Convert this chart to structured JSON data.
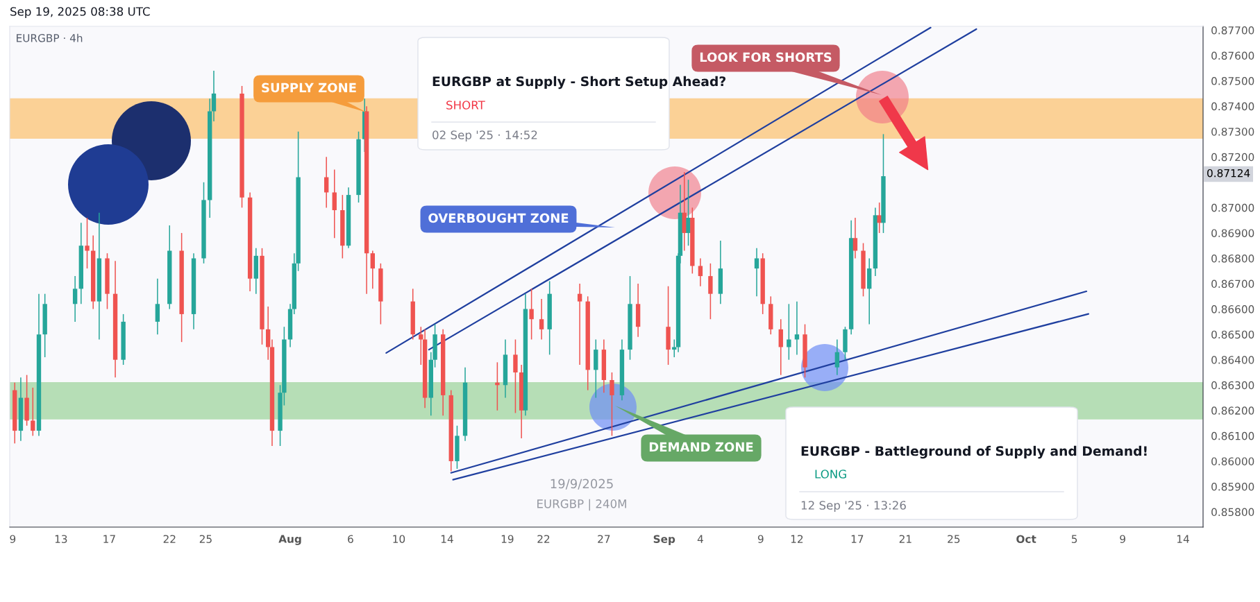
{
  "chart_data": {
    "type": "candlestick",
    "title": "EURGBP · 4h",
    "x": [
      "2025-07-09T04:00",
      "2025-07-09T16:00",
      "2025-07-10T04:00",
      "2025-07-10T16:00",
      "2025-07-11T04:00",
      "2025-07-11T16:00",
      "2025-07-14T04:00",
      "2025-07-14T16:00",
      "2025-07-15T04:00",
      "2025-07-15T16:00",
      "2025-07-16T04:00",
      "2025-07-16T20:00",
      "2025-07-17T12:00",
      "2025-07-18T04:00",
      "2025-07-21T00:00",
      "2025-07-22T00:00",
      "2025-07-23T00:00",
      "2025-07-24T00:00",
      "2025-07-24T20:00",
      "2025-07-25T08:00",
      "2025-07-25T16:00",
      "2025-07-28T00:00",
      "2025-07-28T16:00",
      "2025-07-29T04:00",
      "2025-07-29T16:00",
      "2025-07-30T04:00",
      "2025-07-30T12:00",
      "2025-07-31T04:00",
      "2025-07-31T12:00",
      "2025-08-01T00:00",
      "2025-08-01T08:00",
      "2025-08-01T16:00",
      "2025-08-04T00:00",
      "2025-08-04T16:00",
      "2025-08-05T08:00",
      "2025-08-05T20:00",
      "2025-08-06T16:00",
      "2025-08-07T04:00",
      "2025-08-07T08:00",
      "2025-08-07T20:00",
      "2025-08-08T12:00",
      "2025-08-11T04:00",
      "2025-08-11T20:00",
      "2025-08-12T04:00",
      "2025-08-12T16:00",
      "2025-08-13T00:00",
      "2025-08-13T16:00",
      "2025-08-14T08:00",
      "2025-08-14T20:00",
      "2025-08-15T12:00",
      "2025-08-18T04:00",
      "2025-08-18T20:00",
      "2025-08-19T16:00",
      "2025-08-20T04:00",
      "2025-08-20T12:00",
      "2025-08-21T00:00",
      "2025-08-21T20:00",
      "2025-08-22T12:00",
      "2025-08-25T00:00",
      "2025-08-25T16:00",
      "2025-08-26T08:00",
      "2025-08-27T00:00",
      "2025-08-27T16:00",
      "2025-08-28T12:00",
      "2025-08-29T04:00",
      "2025-08-29T20:00",
      "2025-09-01T08:00",
      "2025-09-01T20:00",
      "2025-09-02T04:00",
      "2025-09-02T08:00",
      "2025-09-02T16:00",
      "2025-09-03T00:00",
      "2025-09-03T08:00",
      "2025-09-04T00:00",
      "2025-09-04T20:00",
      "2025-09-05T16:00",
      "2025-09-08T16:00",
      "2025-09-09T04:00",
      "2025-09-09T20:00",
      "2025-09-10T16:00",
      "2025-09-11T08:00",
      "2025-09-12T00:00",
      "2025-09-12T16:00",
      "2025-09-15T08:00",
      "2025-09-16T00:00",
      "2025-09-16T12:00",
      "2025-09-16T20:00",
      "2025-09-17T12:00",
      "2025-09-18T00:00",
      "2025-09-18T12:00",
      "2025-09-18T20:00",
      "2025-09-19T04:00"
    ],
    "ohlc": [
      [
        0.8628,
        0.8631,
        0.8607,
        0.8612
      ],
      [
        0.8612,
        0.8633,
        0.8608,
        0.8625
      ],
      [
        0.8625,
        0.8634,
        0.8614,
        0.8616
      ],
      [
        0.8616,
        0.8629,
        0.861,
        0.8612
      ],
      [
        0.8612,
        0.8666,
        0.861,
        0.865
      ],
      [
        0.865,
        0.8666,
        0.8641,
        0.8662
      ],
      [
        0.8662,
        0.8673,
        0.8655,
        0.8668
      ],
      [
        0.8668,
        0.8694,
        0.8662,
        0.8685
      ],
      [
        0.8685,
        0.8696,
        0.8676,
        0.8683
      ],
      [
        0.8683,
        0.8689,
        0.866,
        0.8663
      ],
      [
        0.8663,
        0.8698,
        0.8648,
        0.868
      ],
      [
        0.868,
        0.8682,
        0.866,
        0.8666
      ],
      [
        0.8666,
        0.8679,
        0.8633,
        0.864
      ],
      [
        0.864,
        0.8658,
        0.8638,
        0.8655
      ],
      [
        0.8655,
        0.8672,
        0.865,
        0.8662
      ],
      [
        0.8662,
        0.8693,
        0.866,
        0.8683
      ],
      [
        0.8683,
        0.869,
        0.8647,
        0.8658
      ],
      [
        0.8658,
        0.8682,
        0.8652,
        0.868
      ],
      [
        0.868,
        0.871,
        0.8678,
        0.8703
      ],
      [
        0.8703,
        0.8743,
        0.8696,
        0.8738
      ],
      [
        0.8738,
        0.8754,
        0.8734,
        0.8745
      ],
      [
        0.8745,
        0.8748,
        0.87,
        0.8704
      ],
      [
        0.8704,
        0.8706,
        0.8667,
        0.8672
      ],
      [
        0.8672,
        0.8684,
        0.8666,
        0.8681
      ],
      [
        0.8681,
        0.8684,
        0.8646,
        0.8652
      ],
      [
        0.8652,
        0.8661,
        0.864,
        0.8645
      ],
      [
        0.8645,
        0.8648,
        0.8606,
        0.8612
      ],
      [
        0.8612,
        0.863,
        0.8606,
        0.8627
      ],
      [
        0.8627,
        0.8653,
        0.8622,
        0.8648
      ],
      [
        0.8648,
        0.8662,
        0.8645,
        0.866
      ],
      [
        0.866,
        0.8682,
        0.8658,
        0.8678
      ],
      [
        0.8678,
        0.873,
        0.8675,
        0.8712
      ],
      [
        0.8712,
        0.872,
        0.87,
        0.8706
      ],
      [
        0.8706,
        0.8715,
        0.8688,
        0.8699
      ],
      [
        0.8699,
        0.8705,
        0.868,
        0.8685
      ],
      [
        0.8685,
        0.8708,
        0.8684,
        0.8705
      ],
      [
        0.8705,
        0.873,
        0.8702,
        0.8727
      ],
      [
        0.8727,
        0.8743,
        0.8722,
        0.8738
      ],
      [
        0.8738,
        0.874,
        0.8666,
        0.8682
      ],
      [
        0.8682,
        0.8683,
        0.8668,
        0.8676
      ],
      [
        0.8676,
        0.8678,
        0.8654,
        0.8663
      ],
      [
        0.8663,
        0.8668,
        0.8648,
        0.865
      ],
      [
        0.865,
        0.8653,
        0.8638,
        0.8648
      ],
      [
        0.8648,
        0.8652,
        0.8621,
        0.8625
      ],
      [
        0.8625,
        0.8643,
        0.8618,
        0.864
      ],
      [
        0.864,
        0.8654,
        0.8637,
        0.865
      ],
      [
        0.865,
        0.8652,
        0.8618,
        0.8626
      ],
      [
        0.8626,
        0.8628,
        0.8596,
        0.86
      ],
      [
        0.86,
        0.8614,
        0.8597,
        0.861
      ],
      [
        0.861,
        0.8637,
        0.8608,
        0.8631
      ],
      [
        0.8631,
        0.8639,
        0.862,
        0.863
      ],
      [
        0.863,
        0.8648,
        0.8625,
        0.8642
      ],
      [
        0.8642,
        0.8648,
        0.8619,
        0.8635
      ],
      [
        0.8635,
        0.8638,
        0.8609,
        0.862
      ],
      [
        0.862,
        0.8666,
        0.8618,
        0.866
      ],
      [
        0.866,
        0.8668,
        0.8648,
        0.8656
      ],
      [
        0.8656,
        0.8664,
        0.8648,
        0.8652
      ],
      [
        0.8652,
        0.8671,
        0.8642,
        0.8666
      ],
      [
        0.8666,
        0.867,
        0.8638,
        0.8663
      ],
      [
        0.8663,
        0.8665,
        0.8628,
        0.8636
      ],
      [
        0.8636,
        0.8648,
        0.8625,
        0.8644
      ],
      [
        0.8644,
        0.8648,
        0.8627,
        0.8632
      ],
      [
        0.8632,
        0.8635,
        0.861,
        0.8626
      ],
      [
        0.8626,
        0.8648,
        0.8624,
        0.8644
      ],
      [
        0.8644,
        0.8673,
        0.864,
        0.8662
      ],
      [
        0.8662,
        0.867,
        0.8649,
        0.8653
      ],
      [
        0.8653,
        0.8669,
        0.8638,
        0.8644
      ],
      [
        0.8644,
        0.8648,
        0.8641,
        0.8645
      ],
      [
        0.8645,
        0.8682,
        0.8643,
        0.8681
      ],
      [
        0.8681,
        0.8709,
        0.8678,
        0.8698
      ],
      [
        0.8698,
        0.8714,
        0.8683,
        0.869
      ],
      [
        0.869,
        0.8711,
        0.8685,
        0.8696
      ],
      [
        0.8696,
        0.87,
        0.8674,
        0.8677
      ],
      [
        0.8677,
        0.868,
        0.8669,
        0.8673
      ],
      [
        0.8673,
        0.8678,
        0.8656,
        0.8666
      ],
      [
        0.8666,
        0.8687,
        0.8662,
        0.8676
      ],
      [
        0.8676,
        0.8684,
        0.8665,
        0.868
      ],
      [
        0.868,
        0.8682,
        0.8658,
        0.8662
      ],
      [
        0.8662,
        0.8665,
        0.865,
        0.8652
      ],
      [
        0.8652,
        0.8656,
        0.8634,
        0.8645
      ],
      [
        0.8645,
        0.8662,
        0.864,
        0.8648
      ],
      [
        0.8648,
        0.8663,
        0.8642,
        0.865
      ],
      [
        0.865,
        0.8654,
        0.8633,
        0.8637
      ],
      [
        0.8637,
        0.8648,
        0.8634,
        0.8643
      ],
      [
        0.8643,
        0.8653,
        0.864,
        0.8652
      ],
      [
        0.8652,
        0.8695,
        0.865,
        0.8688
      ],
      [
        0.8688,
        0.8696,
        0.868,
        0.8683
      ],
      [
        0.8683,
        0.8686,
        0.8665,
        0.8668
      ],
      [
        0.8668,
        0.868,
        0.8654,
        0.8676
      ],
      [
        0.8676,
        0.87,
        0.8673,
        0.8697
      ],
      [
        0.8697,
        0.8702,
        0.869,
        0.8694
      ],
      [
        0.8694,
        0.8729,
        0.869,
        0.87124
      ]
    ],
    "colors": [
      "#ef5350",
      "#26a69a",
      "#ef5350",
      "#ef5350",
      "#26a69a",
      "#26a69a",
      "#26a69a",
      "#26a69a",
      "#ef5350",
      "#ef5350",
      "#26a69a",
      "#ef5350",
      "#ef5350",
      "#26a69a",
      "#26a69a",
      "#26a69a",
      "#ef5350",
      "#26a69a",
      "#26a69a",
      "#26a69a",
      "#26a69a",
      "#ef5350",
      "#ef5350",
      "#26a69a",
      "#ef5350",
      "#ef5350",
      "#ef5350",
      "#26a69a",
      "#26a69a",
      "#26a69a",
      "#26a69a",
      "#26a69a",
      "#ef5350",
      "#ef5350",
      "#ef5350",
      "#26a69a",
      "#26a69a",
      "#26a69a",
      "#ef5350",
      "#ef5350",
      "#ef5350",
      "#ef5350",
      "#ef5350",
      "#ef5350",
      "#26a69a",
      "#26a69a",
      "#ef5350",
      "#ef5350",
      "#26a69a",
      "#26a69a",
      "#ef5350",
      "#26a69a",
      "#ef5350",
      "#ef5350",
      "#26a69a",
      "#ef5350",
      "#ef5350",
      "#26a69a",
      "#ef5350",
      "#ef5350",
      "#26a69a",
      "#ef5350",
      "#ef5350",
      "#26a69a",
      "#26a69a",
      "#ef5350",
      "#ef5350",
      "#26a69a",
      "#26a69a",
      "#26a69a",
      "#ef5350",
      "#26a69a",
      "#ef5350",
      "#ef5350",
      "#ef5350",
      "#26a69a",
      "#26a69a",
      "#ef5350",
      "#ef5350",
      "#ef5350",
      "#26a69a",
      "#26a69a",
      "#ef5350",
      "#26a69a",
      "#26a69a",
      "#26a69a",
      "#ef5350",
      "#ef5350",
      "#26a69a",
      "#26a69a",
      "#ef5350",
      "#26a69a"
    ],
    "series": [
      {
        "type": "line",
        "color": "#1f3f9f",
        "x": [
          "2025-08-08T23:00",
          "2025-09-23T02:00"
        ],
        "values": [
          0.86427,
          0.8771
        ]
      },
      {
        "type": "line",
        "color": "#1f3f9f",
        "x": [
          "2025-08-12T12:00",
          "2025-09-26T21:00"
        ],
        "values": [
          0.8644,
          0.87704
        ]
      },
      {
        "type": "line",
        "color": "#1f3f9f",
        "x": [
          "2025-08-14T08:00",
          "2025-10-06T00:00"
        ],
        "values": [
          0.85954,
          0.8667
        ]
      },
      {
        "type": "line",
        "color": "#1f3f9f",
        "x": [
          "2025-08-14T12:00",
          "2025-10-06T04:00"
        ],
        "values": [
          0.85927,
          0.86581
        ]
      }
    ],
    "bands": [
      {
        "axis": "y",
        "from": 0.87272,
        "to": 0.87431,
        "color": "#fbd196"
      },
      {
        "axis": "y",
        "from": 0.86165,
        "to": 0.86312,
        "color": "#b6deb6"
      }
    ],
    "xlim": [
      "2025-07-08T18:00",
      "2025-10-15T16:00"
    ],
    "xticks": [
      {
        "value": "2025-07-09",
        "label": "9"
      },
      {
        "value": "2025-07-13",
        "label": "13"
      },
      {
        "value": "2025-07-17",
        "label": "17"
      },
      {
        "value": "2025-07-22",
        "label": "22"
      },
      {
        "value": "2025-07-25",
        "label": "25"
      },
      {
        "value": "2025-08-01",
        "label": "Aug"
      },
      {
        "value": "2025-08-06",
        "label": "6"
      },
      {
        "value": "2025-08-10",
        "label": "10"
      },
      {
        "value": "2025-08-14",
        "label": "14"
      },
      {
        "value": "2025-08-19",
        "label": "19"
      },
      {
        "value": "2025-08-22",
        "label": "22"
      },
      {
        "value": "2025-08-27",
        "label": "27"
      },
      {
        "value": "2025-09-01",
        "label": "Sep"
      },
      {
        "value": "2025-09-04",
        "label": "4"
      },
      {
        "value": "2025-09-09",
        "label": "9"
      },
      {
        "value": "2025-09-12",
        "label": "12"
      },
      {
        "value": "2025-09-17",
        "label": "17"
      },
      {
        "value": "2025-09-21",
        "label": "21"
      },
      {
        "value": "2025-09-25",
        "label": "25"
      },
      {
        "value": "2025-10-01",
        "label": "Oct"
      },
      {
        "value": "2025-10-05",
        "label": "5"
      },
      {
        "value": "2025-10-09",
        "label": "9"
      },
      {
        "value": "2025-10-14",
        "label": "14"
      }
    ],
    "ylim": [
      0.8574,
      0.87715
    ],
    "yticks": [
      {
        "value": 0.858,
        "label": "0.85800"
      },
      {
        "value": 0.859,
        "label": "0.85900"
      },
      {
        "value": 0.86,
        "label": "0.86000"
      },
      {
        "value": 0.861,
        "label": "0.86100"
      },
      {
        "value": 0.862,
        "label": "0.86200"
      },
      {
        "value": 0.863,
        "label": "0.86300"
      },
      {
        "value": 0.864,
        "label": "0.86400"
      },
      {
        "value": 0.865,
        "label": "0.86500"
      },
      {
        "value": 0.866,
        "label": "0.86600"
      },
      {
        "value": 0.867,
        "label": "0.86700"
      },
      {
        "value": 0.868,
        "label": "0.86800"
      },
      {
        "value": 0.869,
        "label": "0.86900"
      },
      {
        "value": 0.87,
        "label": "0.87000"
      },
      {
        "value": 0.872,
        "label": "0.87200"
      },
      {
        "value": 0.873,
        "label": "0.87300"
      },
      {
        "value": 0.874,
        "label": "0.87400"
      },
      {
        "value": 0.875,
        "label": "0.87500"
      },
      {
        "value": 0.876,
        "label": "0.87600"
      },
      {
        "value": 0.877,
        "label": "0.87700"
      }
    ],
    "annotations": [
      "Sep 19, 2025 08:38 UTC",
      "EURGBP at Supply - Short Setup Ahead?",
      "SHORT",
      "02 Sep '25 · 14:52",
      "EURGBP - Battleground of Supply and Demand!",
      "LONG",
      "12 Sep '25 · 13:26",
      "19/9/2025",
      "EURGBP | 240M",
      "SUPPLY ZONE",
      "OVERBOUGHT ZONE",
      "LOOK FOR SHORTS",
      "DEMAND ZONE",
      "0.87124"
    ]
  }
}
